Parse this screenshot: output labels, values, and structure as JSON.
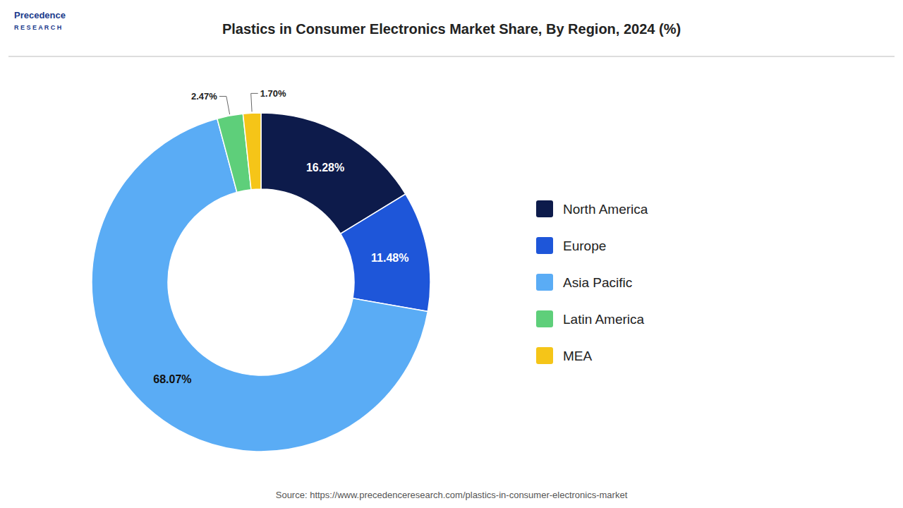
{
  "chart_data": {
    "type": "donut",
    "title": "Plastics in Consumer Electronics Market Share, By Region, 2024 (%)",
    "categories": [
      "North America",
      "Europe",
      "Asia Pacific",
      "Latin America",
      "MEA"
    ],
    "values": [
      16.28,
      11.48,
      68.07,
      2.47,
      1.7
    ],
    "value_labels": [
      "16.28%",
      "11.48%",
      "68.07%",
      "2.47%",
      "1.70%"
    ],
    "colors": [
      "#0d1b4b",
      "#1e56d9",
      "#5aacf5",
      "#5ecf7a",
      "#f5c518"
    ],
    "data_labels": true,
    "legend": "right",
    "annotations": [
      "Precedence",
      "R E S E A R C H",
      "Source: https://www.precedenceresearch.com/plastics-in-consumer-electronics-market"
    ]
  }
}
